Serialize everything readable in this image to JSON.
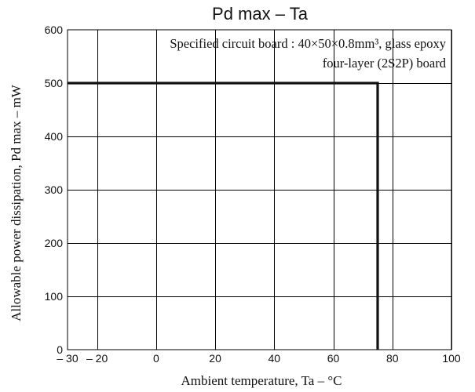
{
  "chart_data": {
    "type": "line",
    "title": "Pd max  –  Ta",
    "xlabel": "Ambient temperature, Ta  –  °C",
    "ylabel": "Allowable power dissipation, Pd max  –  mW",
    "xlim": [
      -30,
      100
    ],
    "ylim": [
      0,
      600
    ],
    "x_ticks": [
      -30,
      -20,
      0,
      20,
      40,
      60,
      80,
      100
    ],
    "x_tick_labels": [
      "– 30",
      "– 20",
      "0",
      "20",
      "40",
      "60",
      "80",
      "100"
    ],
    "x_grid": [
      -20,
      0,
      20,
      40,
      60,
      80,
      100
    ],
    "y_ticks": [
      0,
      100,
      200,
      300,
      400,
      500,
      600
    ],
    "y_tick_labels": [
      "0",
      "100",
      "200",
      "300",
      "400",
      "500",
      "600"
    ],
    "grid": true,
    "annotation": {
      "line1": "Specified circuit board : 40×50×0.8mm³, glass epoxy",
      "line2": "four-layer (2S2P) board"
    },
    "series": [
      {
        "x": [
          -30,
          75,
          75
        ],
        "y": [
          500,
          500,
          0
        ]
      }
    ]
  }
}
